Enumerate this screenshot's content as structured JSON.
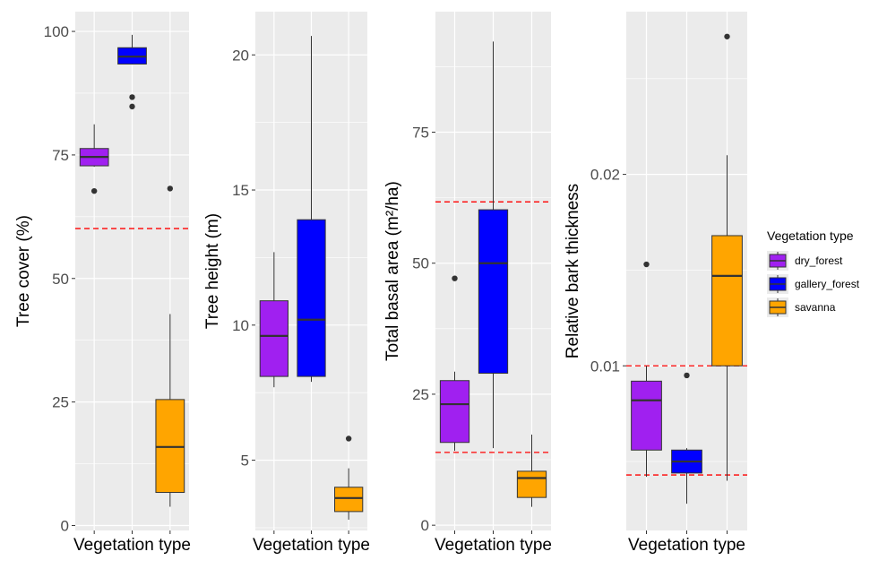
{
  "chart_data": [
    {
      "type": "boxplot",
      "xlabel": "Vegetation type",
      "ylabel": "Tree cover (%)",
      "ylim": [
        -1,
        104
      ],
      "yticks": [
        0,
        25,
        50,
        75,
        100
      ],
      "reference_lines": [
        60.1
      ],
      "boxes": [
        {
          "category": "dry_forest",
          "whisker_low": 72.6,
          "q1": 72.8,
          "median": 74.6,
          "q3": 76.3,
          "whisker_high": 81.2,
          "outliers": [
            67.7
          ]
        },
        {
          "category": "gallery_forest",
          "whisker_low": 93.3,
          "q1": 93.4,
          "median": 94.9,
          "q3": 96.7,
          "whisker_high": 99.3,
          "outliers": [
            86.7,
            84.8
          ]
        },
        {
          "category": "savanna",
          "whisker_low": 3.8,
          "q1": 6.7,
          "median": 15.9,
          "q3": 25.5,
          "whisker_high": 42.8,
          "outliers": [
            68.2
          ]
        }
      ]
    },
    {
      "type": "boxplot",
      "xlabel": "Vegetation type",
      "ylabel": "Tree height (m)",
      "ylim": [
        2.4,
        21.6
      ],
      "yticks": [
        5,
        10,
        15,
        20
      ],
      "reference_lines": [],
      "boxes": [
        {
          "category": "dry_forest",
          "whisker_low": 7.7,
          "q1": 8.1,
          "median": 9.6,
          "q3": 10.9,
          "whisker_high": 12.7,
          "outliers": []
        },
        {
          "category": "gallery_forest",
          "whisker_low": 7.9,
          "q1": 8.1,
          "median": 10.2,
          "q3": 13.9,
          "whisker_high": 20.7,
          "outliers": []
        },
        {
          "category": "savanna",
          "whisker_low": 2.8,
          "q1": 3.1,
          "median": 3.6,
          "q3": 4.0,
          "whisker_high": 4.7,
          "outliers": [
            5.8
          ]
        }
      ]
    },
    {
      "type": "boxplot",
      "xlabel": "Vegetation type",
      "ylabel": "Total basal area (m²/ha)",
      "ylim": [
        -1,
        98
      ],
      "yticks": [
        0,
        25,
        50,
        75
      ],
      "reference_lines": [
        61.7,
        13.9
      ],
      "boxes": [
        {
          "category": "dry_forest",
          "whisker_low": 14.2,
          "q1": 15.8,
          "median": 23.1,
          "q3": 27.6,
          "whisker_high": 29.3,
          "outliers": [
            47.1
          ]
        },
        {
          "category": "gallery_forest",
          "whisker_low": 14.7,
          "q1": 29.0,
          "median": 50.0,
          "q3": 60.2,
          "whisker_high": 92.3,
          "outliers": []
        },
        {
          "category": "savanna",
          "whisker_low": 3.5,
          "q1": 5.3,
          "median": 9.0,
          "q3": 10.3,
          "whisker_high": 17.3,
          "outliers": []
        }
      ]
    },
    {
      "type": "boxplot",
      "xlabel": "Vegetation type",
      "ylabel": "Relative bark thickness",
      "ylim": [
        0.0014,
        0.0285
      ],
      "yticks": [
        0.01,
        0.02
      ],
      "ytick_labels": [
        "0.01",
        "0.02"
      ],
      "reference_lines": [
        0.01,
        0.0043
      ],
      "boxes": [
        {
          "category": "dry_forest",
          "whisker_low": 0.0042,
          "q1": 0.0056,
          "median": 0.0082,
          "q3": 0.0092,
          "whisker_high": 0.01,
          "outliers": [
            0.0153
          ]
        },
        {
          "category": "gallery_forest",
          "whisker_low": 0.0028,
          "q1": 0.0044,
          "median": 0.005,
          "q3": 0.0056,
          "whisker_high": 0.0057,
          "outliers": [
            0.0095
          ]
        },
        {
          "category": "savanna",
          "whisker_low": 0.004,
          "q1": 0.01,
          "median": 0.0147,
          "q3": 0.0168,
          "whisker_high": 0.021,
          "outliers": [
            0.0272
          ]
        }
      ]
    }
  ],
  "legend": {
    "title": "Vegetation type",
    "position": "right",
    "items": [
      {
        "label": "dry_forest",
        "color": "#a020f0"
      },
      {
        "label": "gallery_forest",
        "color": "#0000ff"
      },
      {
        "label": "savanna",
        "color": "#ffa500"
      }
    ]
  },
  "reference_line_color": "#ff0000"
}
